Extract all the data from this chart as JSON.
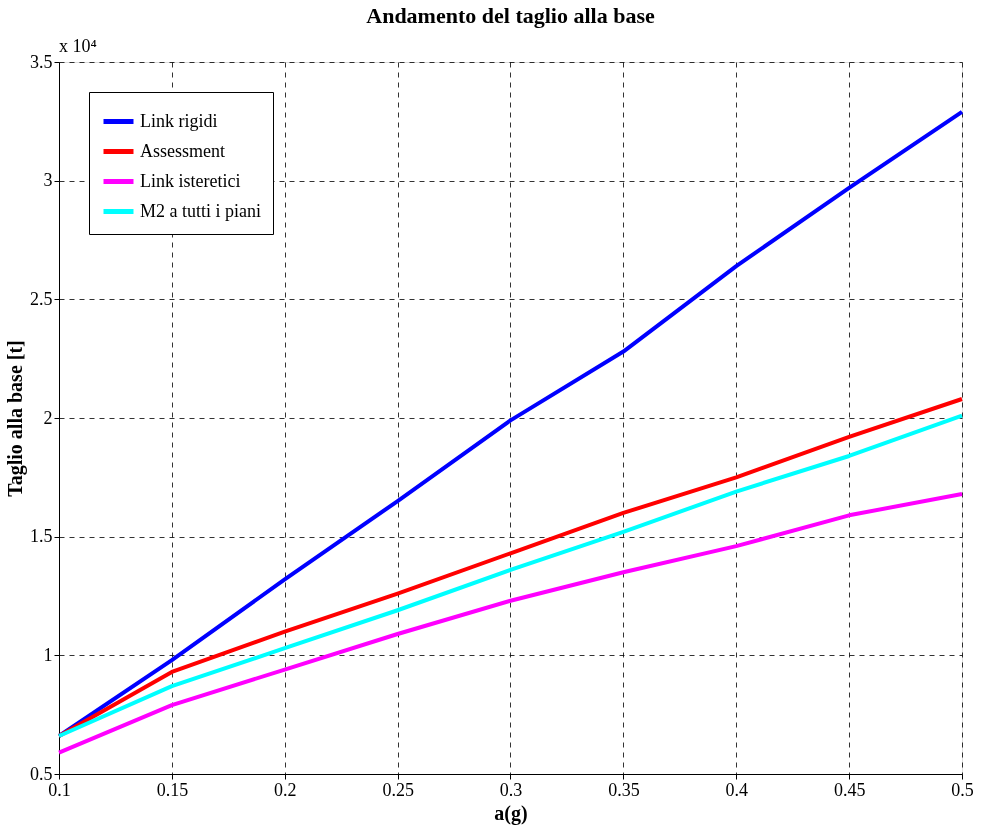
{
  "chart_data": {
    "type": "line",
    "title": "Andamento del taglio alla base",
    "xlabel": "a(g)",
    "ylabel": "Taglio alla base [t]",
    "annotations": [
      "x 10⁴"
    ],
    "x": [
      0.1,
      0.15,
      0.2,
      0.25,
      0.3,
      0.35,
      0.4,
      0.45,
      0.5
    ],
    "series": [
      {
        "name": "Link rigidi",
        "color": "#0000ff",
        "values": [
          0.66,
          0.98,
          1.32,
          1.65,
          1.99,
          2.28,
          2.64,
          2.97,
          3.29
        ]
      },
      {
        "name": "Assessment",
        "color": "#ff0000",
        "values": [
          0.66,
          0.93,
          1.1,
          1.26,
          1.43,
          1.6,
          1.75,
          1.92,
          2.08
        ]
      },
      {
        "name": "Link isteretici",
        "color": "#ff00ff",
        "values": [
          0.59,
          0.79,
          0.94,
          1.09,
          1.23,
          1.35,
          1.46,
          1.59,
          1.68
        ]
      },
      {
        "name": "M2 a tutti i piani",
        "color": "#00ffff",
        "values": [
          0.66,
          0.87,
          1.03,
          1.19,
          1.36,
          1.52,
          1.69,
          1.84,
          2.01
        ]
      }
    ],
    "xlim": [
      0.1,
      0.5
    ],
    "xticks": [
      0.1,
      0.15,
      0.2,
      0.25,
      0.3,
      0.35,
      0.4,
      0.45,
      0.5
    ],
    "ylim": [
      0.5,
      3.5
    ],
    "yticks": [
      0.5,
      1,
      1.5,
      2,
      2.5,
      3,
      3.5
    ],
    "grid": true,
    "legend": "top left",
    "line_style": "solid",
    "marker": "none"
  }
}
